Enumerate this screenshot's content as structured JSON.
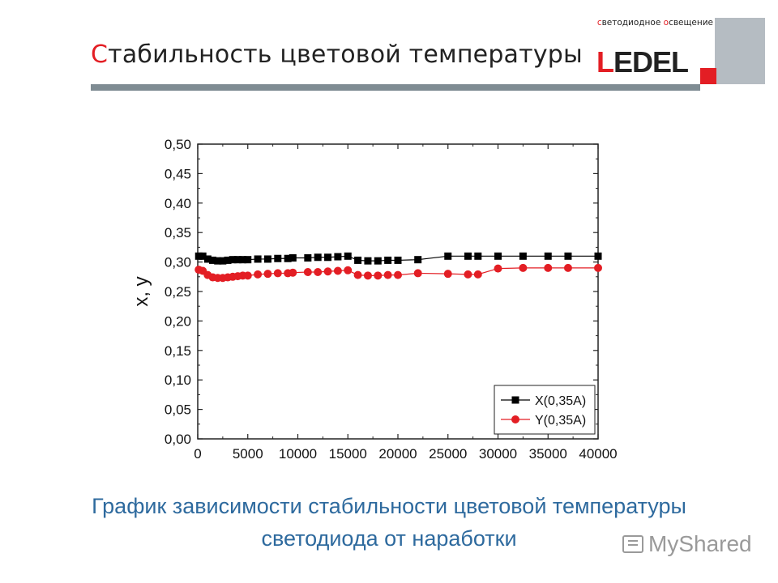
{
  "header": {
    "title_first": "С",
    "title_rest": "табильность цветовой температуры"
  },
  "logo": {
    "tagline_first": "с",
    "tagline_mid": "ветодиодное ",
    "tagline_second": "о",
    "tagline_rest": "свещение",
    "word_first": "L",
    "word_rest": "EDEL",
    "accent_color": "#e31e24"
  },
  "caption": {
    "line1": "График зависимости стабильности цветовой температуры",
    "line2": "светодиода от наработки"
  },
  "watermark": {
    "text": "MyShared",
    "icon": "presentation-icon"
  },
  "chart_data": {
    "type": "line",
    "xlabel": "",
    "ylabel": "x, y",
    "xlim": [
      0,
      40000
    ],
    "ylim": [
      0,
      0.5
    ],
    "xticks": [
      "0",
      "5000",
      "10000",
      "15000",
      "20000",
      "25000",
      "30000",
      "35000",
      "40000"
    ],
    "yticks": [
      "0,00",
      "0,05",
      "0,10",
      "0,15",
      "0,20",
      "0,25",
      "0,30",
      "0,35",
      "0,40",
      "0,45",
      "0,50"
    ],
    "legend_position": "bottom-right",
    "series": [
      {
        "name": "X(0,35A)",
        "color": "#000000",
        "marker": "square",
        "x": [
          100,
          500,
          1000,
          1500,
          2000,
          2500,
          3000,
          3500,
          4000,
          4500,
          5000,
          6000,
          7000,
          8000,
          9000,
          9500,
          11000,
          12000,
          13000,
          14000,
          15000,
          16000,
          17000,
          18000,
          19000,
          20000,
          22000,
          25000,
          27000,
          28000,
          30000,
          32500,
          35000,
          37000,
          40000
        ],
        "y": [
          0.31,
          0.31,
          0.305,
          0.303,
          0.302,
          0.302,
          0.303,
          0.304,
          0.304,
          0.304,
          0.304,
          0.305,
          0.305,
          0.306,
          0.306,
          0.307,
          0.307,
          0.308,
          0.308,
          0.309,
          0.31,
          0.303,
          0.302,
          0.302,
          0.303,
          0.303,
          0.304,
          0.31,
          0.31,
          0.31,
          0.31,
          0.31,
          0.31,
          0.31,
          0.31
        ]
      },
      {
        "name": "Y(0,35A)",
        "color": "#e31e24",
        "marker": "circle",
        "x": [
          100,
          500,
          1000,
          1500,
          2000,
          2500,
          3000,
          3500,
          4000,
          4500,
          5000,
          6000,
          7000,
          8000,
          9000,
          9500,
          11000,
          12000,
          13000,
          14000,
          15000,
          16000,
          17000,
          18000,
          19000,
          20000,
          22000,
          25000,
          27000,
          28000,
          30000,
          32500,
          35000,
          37000,
          40000
        ],
        "y": [
          0.287,
          0.285,
          0.278,
          0.274,
          0.273,
          0.273,
          0.274,
          0.275,
          0.276,
          0.277,
          0.277,
          0.279,
          0.28,
          0.281,
          0.281,
          0.282,
          0.283,
          0.283,
          0.284,
          0.285,
          0.286,
          0.278,
          0.277,
          0.277,
          0.278,
          0.278,
          0.281,
          0.28,
          0.279,
          0.279,
          0.289,
          0.29,
          0.29,
          0.29,
          0.29
        ]
      }
    ]
  }
}
